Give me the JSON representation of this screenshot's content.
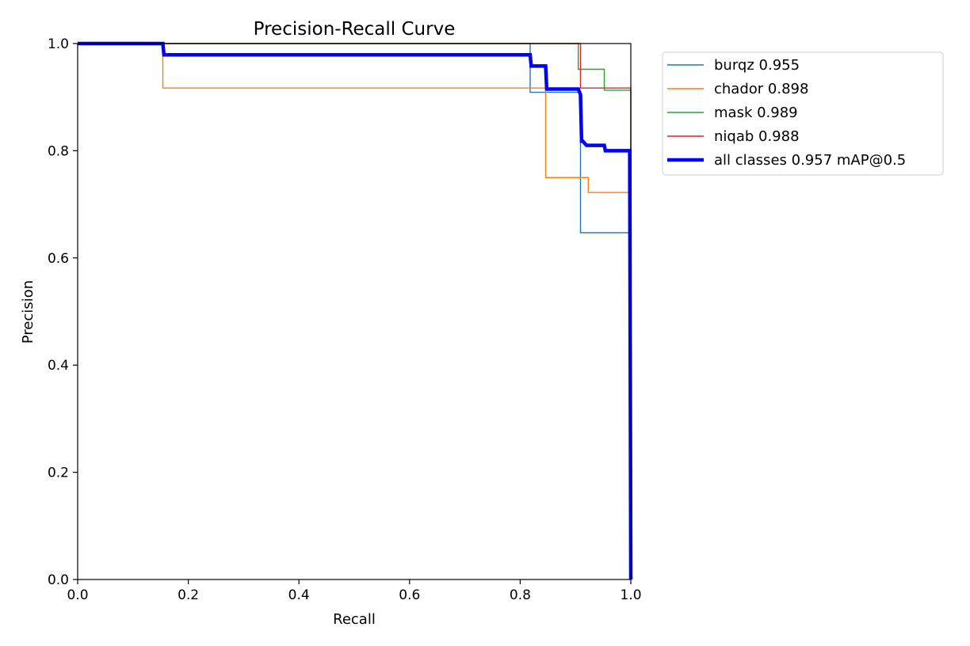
{
  "chart_data": {
    "type": "line",
    "title": "Precision-Recall Curve",
    "xlabel": "Recall",
    "ylabel": "Precision",
    "xlim": [
      0,
      1
    ],
    "ylim": [
      0,
      1
    ],
    "xticks": [
      "0.0",
      "0.2",
      "0.4",
      "0.6",
      "0.8",
      "1.0"
    ],
    "yticks": [
      "0.0",
      "0.2",
      "0.4",
      "0.6",
      "0.8",
      "1.0"
    ],
    "grid": false,
    "legend_position": "outside top-right",
    "series": [
      {
        "name": "burqz 0.955",
        "color": "#1f77b4",
        "width": "thin",
        "x": [
          0,
          0.818,
          0.818,
          0.909,
          0.909,
          1.0,
          1.0
        ],
        "y": [
          1.0,
          1.0,
          0.909,
          0.909,
          0.647,
          0.647,
          0.0
        ]
      },
      {
        "name": "chador 0.898",
        "color": "#ff7f0e",
        "width": "thin",
        "x": [
          0,
          0.154,
          0.154,
          0.846,
          0.846,
          0.923,
          0.923,
          1.0,
          1.0
        ],
        "y": [
          1.0,
          1.0,
          0.917,
          0.917,
          0.75,
          0.75,
          0.722,
          0.722,
          0.0
        ]
      },
      {
        "name": "mask 0.989",
        "color": "#2ca02c",
        "width": "thin",
        "x": [
          0,
          0.905,
          0.905,
          0.952,
          0.952,
          1.0,
          1.0
        ],
        "y": [
          1.0,
          1.0,
          0.952,
          0.952,
          0.913,
          0.913,
          0.0
        ]
      },
      {
        "name": "niqab 0.988",
        "color": "#d62728",
        "width": "thin",
        "x": [
          0,
          0.909,
          0.909,
          1.0,
          1.0
        ],
        "y": [
          1.0,
          1.0,
          0.917,
          0.917,
          0.0
        ]
      },
      {
        "name": "all classes 0.957 mAP@0.5",
        "color": "#0000ff",
        "width": "thick",
        "x": [
          0,
          0.154,
          0.156,
          0.818,
          0.82,
          0.846,
          0.848,
          0.905,
          0.909,
          0.911,
          0.913,
          0.92,
          0.922,
          0.952,
          0.954,
          0.998,
          1.0
        ],
        "y": [
          1.0,
          1.0,
          0.979,
          0.979,
          0.958,
          0.958,
          0.915,
          0.915,
          0.905,
          0.818,
          0.818,
          0.81,
          0.81,
          0.81,
          0.8,
          0.8,
          0.0
        ]
      }
    ]
  }
}
